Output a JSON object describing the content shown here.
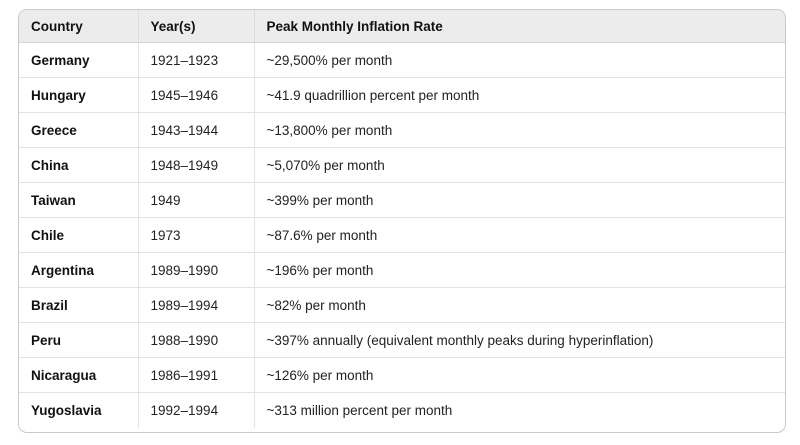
{
  "table": {
    "columns": [
      "Country",
      "Year(s)",
      "Peak Monthly Inflation Rate"
    ],
    "rows": [
      {
        "country": "Germany",
        "years": "1921–1923",
        "rate": "~29,500% per month"
      },
      {
        "country": "Hungary",
        "years": "1945–1946",
        "rate": "~41.9 quadrillion percent per month"
      },
      {
        "country": "Greece",
        "years": "1943–1944",
        "rate": "~13,800% per month"
      },
      {
        "country": "China",
        "years": "1948–1949",
        "rate": "~5,070% per month"
      },
      {
        "country": "Taiwan",
        "years": "1949",
        "rate": "~399% per month"
      },
      {
        "country": "Chile",
        "years": "1973",
        "rate": "~87.6% per month"
      },
      {
        "country": "Argentina",
        "years": "1989–1990",
        "rate": "~196% per month"
      },
      {
        "country": "Brazil",
        "years": "1989–1994",
        "rate": "~82% per month"
      },
      {
        "country": "Peru",
        "years": "1988–1990",
        "rate": "~397% annually (equivalent monthly peaks during hyperinflation)"
      },
      {
        "country": "Nicaragua",
        "years": "1986–1991",
        "rate": "~126% per month"
      },
      {
        "country": "Yugoslavia",
        "years": "1992–1994",
        "rate": "~313 million percent per month"
      }
    ]
  }
}
